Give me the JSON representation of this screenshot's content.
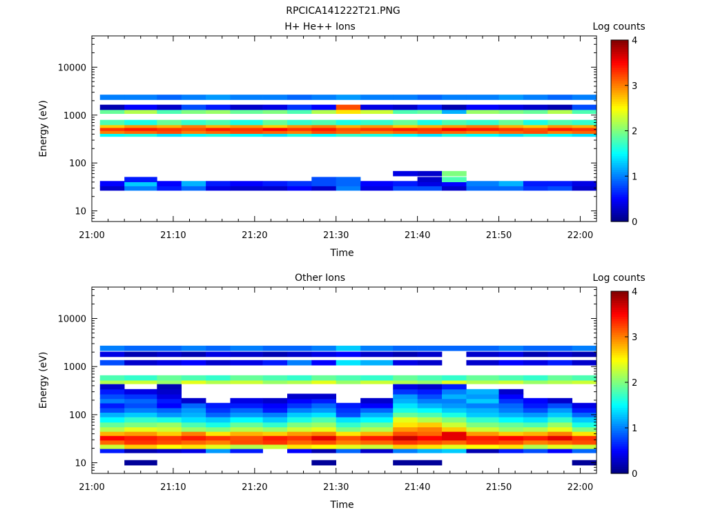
{
  "figure_title": "RPCICA141222T21.PNG",
  "colors": {
    "background": "#ffffff",
    "axis": "#000000",
    "colormap": [
      "#00007f",
      "#0000ff",
      "#007fff",
      "#00ffff",
      "#7fff7f",
      "#ffff00",
      "#ff7f00",
      "#ff0000",
      "#7f0000"
    ]
  },
  "chart_data": [
    {
      "type": "heatmap",
      "title": "H+ He++ Ions",
      "xlabel": "Time",
      "ylabel": "Energy (eV)",
      "y_scale": "log",
      "x_range": [
        "21:00",
        "22:02"
      ],
      "ylim": [
        6,
        45000
      ],
      "x_tick_labels": [
        "21:00",
        "21:10",
        "21:20",
        "21:30",
        "21:40",
        "21:50",
        "22:00"
      ],
      "y_tick_labels": [
        "10",
        "100",
        "1000",
        "10000"
      ],
      "colorbar": {
        "label": "Log counts",
        "min": 0,
        "max": 4,
        "tick_labels": [
          "0",
          "1",
          "2",
          "3",
          "4"
        ]
      },
      "time_bins": [
        "21:01",
        "21:04",
        "21:08",
        "21:11",
        "21:14",
        "21:17",
        "21:21",
        "21:24",
        "21:27",
        "21:30",
        "21:33",
        "21:37",
        "21:40",
        "21:43",
        "21:46",
        "21:50",
        "21:53",
        "21:56",
        "21:59",
        "22:02"
      ],
      "bands": [
        {
          "e": 30,
          "v": [
            0.3,
            1.0,
            0.6,
            0.9,
            0.4,
            0.3,
            0.3,
            0.5,
            0.3,
            1.0,
            0.4,
            0.8,
            0.8,
            0.3,
            0.9,
            0.9,
            0.7,
            0.8,
            0.3
          ]
        },
        {
          "e": 37,
          "v": [
            0.5,
            1.3,
            0.5,
            1.2,
            0.6,
            0.5,
            0.6,
            0.7,
            0.8,
            0.9,
            0.5,
            0.6,
            0.4,
            0.5,
            1.0,
            1.2,
            0.6,
            0.6,
            0.4
          ]
        },
        {
          "e": 45,
          "v": [
            null,
            0.6,
            null,
            null,
            null,
            null,
            null,
            null,
            0.8,
            0.9,
            null,
            null,
            0.3,
            1.8,
            null,
            null,
            null,
            null,
            null
          ]
        },
        {
          "e": 60,
          "v": [
            null,
            null,
            null,
            null,
            null,
            null,
            null,
            null,
            null,
            null,
            null,
            0.4,
            0.3,
            2.0,
            null,
            null,
            null,
            null,
            null
          ]
        },
        {
          "e": 400,
          "v": [
            1.5,
            1.6,
            1.4,
            1.5,
            1.6,
            1.5,
            1.4,
            1.6,
            1.5,
            1.7,
            1.6,
            1.5,
            1.4,
            1.6,
            1.5,
            1.4,
            1.6,
            1.5,
            1.4
          ]
        },
        {
          "e": 460,
          "v": [
            3.0,
            3.1,
            3.2,
            3.0,
            3.1,
            3.2,
            3.1,
            3.0,
            3.2,
            3.1,
            3.0,
            3.1,
            3.2,
            3.1,
            3.0,
            3.1,
            3.2,
            3.0,
            3.1
          ]
        },
        {
          "e": 530,
          "v": [
            3.3,
            3.4,
            3.3,
            3.2,
            3.4,
            3.3,
            3.5,
            3.3,
            3.4,
            3.2,
            3.3,
            3.4,
            3.3,
            3.5,
            3.4,
            3.3,
            3.2,
            3.4,
            3.3
          ]
        },
        {
          "e": 610,
          "v": [
            2.7,
            2.9,
            2.8,
            3.0,
            2.8,
            2.9,
            2.7,
            2.9,
            3.0,
            2.8,
            2.9,
            2.7,
            2.8,
            2.9,
            3.0,
            2.8,
            2.7,
            2.9,
            2.8
          ]
        },
        {
          "e": 700,
          "v": [
            1.8,
            1.6,
            1.9,
            1.7,
            1.8,
            1.6,
            1.9,
            1.7,
            1.8,
            1.6,
            1.7,
            1.9,
            1.6,
            1.8,
            1.7,
            1.9,
            1.6,
            1.8,
            1.7
          ]
        },
        {
          "e": 1200,
          "v": [
            1.9,
            2.2,
            1.8,
            2.0,
            2.1,
            1.9,
            2.0,
            1.8,
            2.2,
            2.6,
            2.3,
            1.8,
            1.9,
            1.2,
            2.1,
            2.0,
            1.9,
            2.2,
            1.8
          ]
        },
        {
          "e": 1450,
          "v": [
            0.2,
            0.5,
            0.3,
            0.8,
            0.6,
            0.3,
            0.4,
            0.7,
            0.5,
            3.2,
            0.4,
            0.3,
            0.6,
            0.2,
            0.5,
            0.4,
            0.3,
            0.2,
            0.8
          ]
        },
        {
          "e": 2350,
          "v": [
            1.0,
            1.0,
            0.9,
            1.0,
            1.1,
            1.0,
            1.0,
            0.9,
            1.0,
            1.1,
            1.0,
            1.0,
            0.9,
            1.0,
            1.0,
            1.1,
            1.0,
            0.9,
            1.0
          ]
        }
      ]
    },
    {
      "type": "heatmap",
      "title": "Other Ions",
      "xlabel": "Time",
      "ylabel": "Energy (eV)",
      "y_scale": "log",
      "x_range": [
        "21:00",
        "22:02"
      ],
      "ylim": [
        6,
        45000
      ],
      "x_tick_labels": [
        "21:00",
        "21:10",
        "21:20",
        "21:30",
        "21:40",
        "21:50",
        "22:00"
      ],
      "y_tick_labels": [
        "10",
        "100",
        "1000",
        "10000"
      ],
      "colorbar": {
        "label": "Log counts",
        "min": 0,
        "max": 4,
        "tick_labels": [
          "0",
          "1",
          "2",
          "3",
          "4"
        ]
      },
      "time_bins": [
        "21:01",
        "21:04",
        "21:08",
        "21:11",
        "21:14",
        "21:17",
        "21:21",
        "21:24",
        "21:27",
        "21:30",
        "21:33",
        "21:37",
        "21:40",
        "21:43",
        "21:46",
        "21:50",
        "21:53",
        "21:56",
        "21:59",
        "22:02"
      ],
      "bands": [
        {
          "e": 10,
          "v": [
            null,
            0.1,
            null,
            null,
            null,
            null,
            null,
            null,
            0.1,
            null,
            null,
            0.1,
            0.1,
            null,
            null,
            null,
            null,
            null,
            0.1
          ]
        },
        {
          "e": 18,
          "v": [
            0.6,
            0.2,
            0.3,
            0.4,
            1.1,
            0.6,
            null,
            0.5,
            0.2,
            0.9,
            0.3,
            1.0,
            1.2,
            1.3,
            0.2,
            0.6,
            0.8,
            0.5,
            0.9
          ]
        },
        {
          "e": 22,
          "v": [
            2.3,
            2.7,
            2.5,
            2.6,
            2.4,
            2.2,
            2.3,
            2.6,
            2.5,
            2.4,
            2.3,
            2.7,
            2.6,
            2.4,
            2.5,
            2.6,
            2.2,
            2.4,
            2.3
          ]
        },
        {
          "e": 27,
          "v": [
            3.1,
            3.3,
            3.2,
            3.1,
            3.0,
            3.2,
            3.3,
            3.1,
            3.2,
            3.0,
            3.1,
            3.3,
            3.2,
            3.1,
            3.3,
            3.2,
            3.0,
            3.1,
            3.2
          ]
        },
        {
          "e": 33,
          "v": [
            3.5,
            3.4,
            3.3,
            3.4,
            3.3,
            3.2,
            3.4,
            3.3,
            3.6,
            3.2,
            3.4,
            3.7,
            3.5,
            3.6,
            3.4,
            3.5,
            3.4,
            3.6,
            3.3
          ]
        },
        {
          "e": 41,
          "v": [
            2.8,
            2.9,
            2.7,
            3.0,
            2.6,
            2.8,
            2.7,
            2.9,
            3.0,
            2.6,
            2.8,
            3.2,
            3.1,
            3.6,
            2.9,
            2.7,
            2.8,
            3.0,
            2.6
          ]
        },
        {
          "e": 50,
          "v": [
            2.2,
            2.4,
            2.3,
            2.1,
            2.0,
            2.2,
            2.1,
            2.3,
            2.4,
            2.0,
            2.2,
            2.9,
            3.0,
            2.7,
            2.3,
            2.1,
            2.2,
            2.4,
            2.0
          ]
        },
        {
          "e": 62,
          "v": [
            1.9,
            2.0,
            2.1,
            1.8,
            1.6,
            1.9,
            1.7,
            2.0,
            2.1,
            1.7,
            1.9,
            2.6,
            2.7,
            2.3,
            2.0,
            1.9,
            1.8,
            2.1,
            1.6
          ]
        },
        {
          "e": 78,
          "v": [
            1.5,
            1.7,
            1.6,
            1.4,
            1.3,
            1.5,
            1.3,
            1.6,
            1.8,
            1.4,
            1.5,
            2.4,
            2.2,
            2.0,
            1.7,
            1.5,
            1.4,
            1.7,
            1.3
          ]
        },
        {
          "e": 100,
          "v": [
            1.2,
            1.3,
            1.1,
            1.2,
            0.9,
            1.1,
            1.0,
            1.3,
            1.4,
            0.8,
            1.2,
            1.9,
            1.8,
            1.6,
            1.3,
            1.2,
            1.1,
            1.3,
            0.9
          ]
        },
        {
          "e": 125,
          "v": [
            0.8,
            1.0,
            0.9,
            1.1,
            0.7,
            0.9,
            0.6,
            1.0,
            1.1,
            0.7,
            0.9,
            1.6,
            1.5,
            1.3,
            1.2,
            1.0,
            0.8,
            1.1,
            0.6
          ]
        },
        {
          "e": 155,
          "v": [
            0.6,
            0.8,
            0.5,
            0.9,
            0.6,
            0.6,
            0.5,
            0.7,
            0.9,
            0.6,
            0.5,
            1.4,
            1.2,
            1.1,
            1.0,
            0.9,
            0.6,
            0.8,
            0.4
          ]
        },
        {
          "e": 195,
          "v": [
            1.0,
            0.9,
            0.6,
            0.3,
            null,
            0.4,
            0.3,
            0.5,
            0.6,
            null,
            0.3,
            1.2,
            1.0,
            1.0,
            1.3,
            0.7,
            0.5,
            0.3,
            null
          ]
        },
        {
          "e": 240,
          "v": [
            0.8,
            0.7,
            0.4,
            null,
            null,
            null,
            null,
            0.3,
            0.3,
            null,
            null,
            1.1,
            0.8,
            1.2,
            1.1,
            0.5,
            null,
            null,
            null
          ]
        },
        {
          "e": 300,
          "v": [
            0.6,
            0.4,
            0.3,
            null,
            null,
            null,
            null,
            null,
            null,
            null,
            null,
            0.7,
            0.6,
            1.0,
            1.2,
            0.3,
            null,
            null,
            null
          ]
        },
        {
          "e": 380,
          "v": [
            0.3,
            null,
            0.2,
            null,
            null,
            null,
            null,
            null,
            null,
            null,
            null,
            0.4,
            0.3,
            0.6,
            null,
            null,
            null,
            null,
            null
          ]
        },
        {
          "e": 490,
          "v": [
            2.2,
            2.3,
            2.1,
            2.4,
            2.2,
            2.3,
            2.1,
            2.2,
            2.4,
            2.1,
            2.3,
            2.2,
            2.1,
            2.4,
            2.2,
            2.3,
            2.1,
            2.2,
            2.3
          ]
        },
        {
          "e": 580,
          "v": [
            1.8,
            1.7,
            1.9,
            1.8,
            1.7,
            1.9,
            1.8,
            1.7,
            1.9,
            1.8,
            1.7,
            1.9,
            1.8,
            1.7,
            1.9,
            1.8,
            1.7,
            1.9,
            1.8
          ]
        },
        {
          "e": 1200,
          "v": [
            0.8,
            0.3,
            0.4,
            0.5,
            0.3,
            0.4,
            0.6,
            1.0,
            0.5,
            1.4,
            1.2,
            0.4,
            0.3,
            null,
            0.3,
            0.5,
            0.4,
            0.6,
            0.3
          ]
        },
        {
          "e": 1800,
          "v": [
            0.4,
            0.2,
            0.3,
            0.2,
            0.4,
            0.3,
            0.2,
            0.3,
            0.4,
            0.5,
            0.3,
            0.2,
            0.3,
            null,
            0.3,
            0.4,
            0.2,
            0.3,
            0.2
          ]
        },
        {
          "e": 2400,
          "v": [
            1.0,
            0.9,
            0.9,
            1.0,
            0.9,
            1.0,
            0.9,
            0.9,
            1.0,
            1.3,
            1.0,
            0.9,
            0.9,
            0.9,
            0.9,
            1.0,
            0.9,
            0.9,
            1.0
          ]
        }
      ]
    }
  ]
}
